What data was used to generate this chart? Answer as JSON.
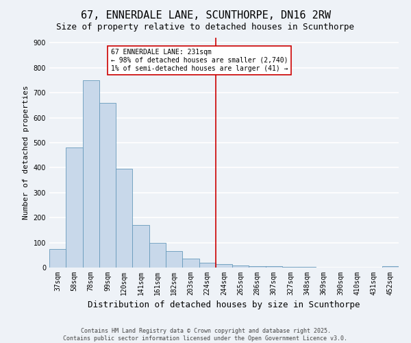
{
  "title": "67, ENNERDALE LANE, SCUNTHORPE, DN16 2RW",
  "subtitle": "Size of property relative to detached houses in Scunthorpe",
  "xlabel": "Distribution of detached houses by size in Scunthorpe",
  "ylabel": "Number of detached properties",
  "bar_labels": [
    "37sqm",
    "58sqm",
    "78sqm",
    "99sqm",
    "120sqm",
    "141sqm",
    "161sqm",
    "182sqm",
    "203sqm",
    "224sqm",
    "244sqm",
    "265sqm",
    "286sqm",
    "307sqm",
    "327sqm",
    "348sqm",
    "369sqm",
    "390sqm",
    "410sqm",
    "431sqm",
    "452sqm"
  ],
  "bar_values": [
    75,
    480,
    750,
    660,
    395,
    170,
    100,
    65,
    35,
    20,
    15,
    8,
    6,
    5,
    4,
    3,
    0,
    0,
    0,
    0,
    5
  ],
  "bar_color": "#c8d8ea",
  "bar_edge_color": "#6699bb",
  "vline_x": 9.5,
  "vline_color": "#cc0000",
  "annotation_text": "67 ENNERDALE LANE: 231sqm\n← 98% of detached houses are smaller (2,740)\n1% of semi-detached houses are larger (41) →",
  "annotation_box_facecolor": "#ffffff",
  "annotation_box_edgecolor": "#cc0000",
  "ylim": [
    0,
    920
  ],
  "yticks": [
    0,
    100,
    200,
    300,
    400,
    500,
    600,
    700,
    800,
    900
  ],
  "footer_line1": "Contains HM Land Registry data © Crown copyright and database right 2025.",
  "footer_line2": "Contains public sector information licensed under the Open Government Licence v3.0.",
  "bg_color": "#eef2f7",
  "grid_color": "#ffffff",
  "title_fontsize": 11,
  "subtitle_fontsize": 9,
  "xlabel_fontsize": 9,
  "ylabel_fontsize": 8,
  "tick_fontsize": 7,
  "annotation_fontsize": 7,
  "footer_fontsize": 6
}
